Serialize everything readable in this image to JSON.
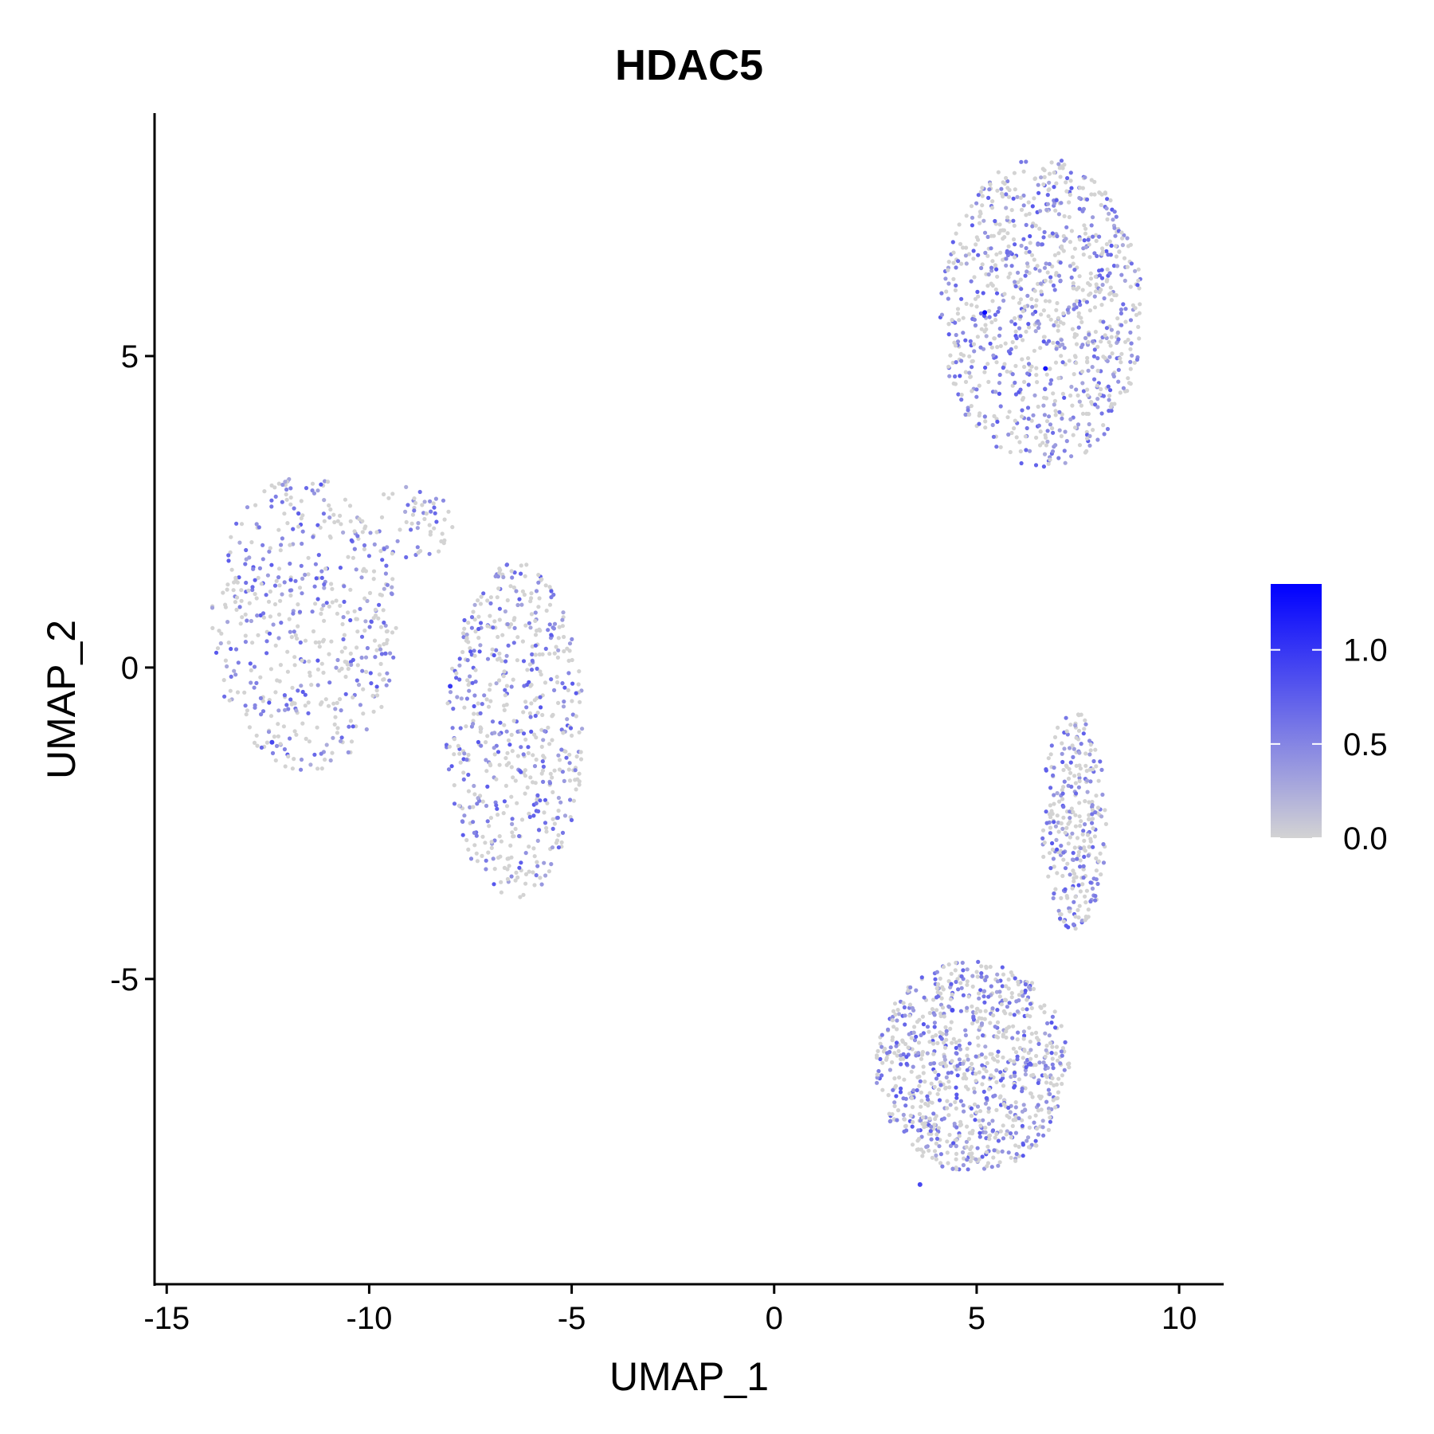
{
  "chart_data": {
    "type": "scatter",
    "title": "HDAC5",
    "xlabel": "UMAP_1",
    "ylabel": "UMAP_2",
    "xlim": [
      -15.3,
      11.1
    ],
    "ylim": [
      -9.9,
      8.9
    ],
    "xticks": [
      -15,
      -10,
      -5,
      0,
      5,
      10
    ],
    "xtick_labels": [
      "-15",
      "-10",
      "-5",
      "0",
      "5",
      "10"
    ],
    "yticks": [
      -5,
      0,
      5
    ],
    "ytick_labels": [
      "-5",
      "0",
      "5"
    ],
    "grid": false,
    "color_scale": {
      "low": "#d3d3d3",
      "high": "#0000ff",
      "min": 0.0,
      "max": 1.35,
      "ticks": [
        0.0,
        0.5,
        1.0
      ],
      "tick_labels": [
        "0.0",
        "0.5",
        "1.0"
      ]
    },
    "legend": "right",
    "clusters": [
      {
        "cx": -11.6,
        "cy": 0.7,
        "rx": 2.3,
        "ry": 2.4,
        "n": 520,
        "mean_expr": 0.3
      },
      {
        "cx": -6.4,
        "cy": -1.0,
        "rx": 1.7,
        "ry": 2.7,
        "n": 580,
        "mean_expr": 0.3
      },
      {
        "cx": -9.0,
        "cy": 2.3,
        "rx": 1.1,
        "ry": 0.6,
        "n": 60,
        "mean_expr": 0.15
      },
      {
        "cx": 6.6,
        "cy": 5.7,
        "rx": 2.5,
        "ry": 2.5,
        "n": 950,
        "mean_expr": 0.2
      },
      {
        "cx": 4.9,
        "cy": -6.4,
        "rx": 2.4,
        "ry": 1.7,
        "n": 900,
        "mean_expr": 0.3
      },
      {
        "cx": 7.4,
        "cy": -2.5,
        "rx": 0.8,
        "ry": 1.8,
        "n": 300,
        "mean_expr": 0.3
      }
    ],
    "highlighted_points": [
      {
        "x": 5.2,
        "y": 5.7,
        "value": 1.3
      },
      {
        "x": 6.7,
        "y": 4.8,
        "value": 1.25
      },
      {
        "x": -8.0,
        "y": -0.3,
        "value": 1.0
      },
      {
        "x": -12.4,
        "y": -1.2,
        "value": 0.9
      },
      {
        "x": 3.6,
        "y": -8.3,
        "value": 0.9
      },
      {
        "x": 4.4,
        "y": -5.5,
        "value": 0.85
      }
    ]
  }
}
